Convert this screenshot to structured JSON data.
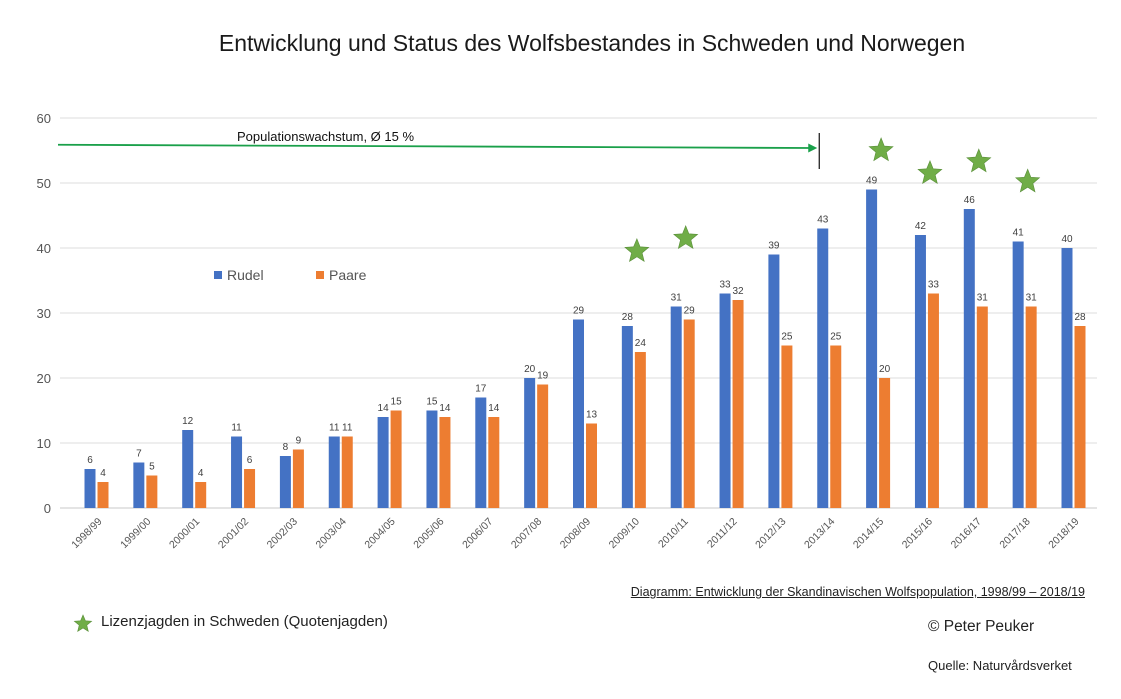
{
  "chart_data": {
    "type": "bar",
    "title": "Entwicklung und Status des Wolfsbestandes in Schweden und Norwegen",
    "caption": "Diagramm: Entwicklung der Skandinavischen Wolfspopulation, 1998/99 – 2018/19",
    "categories": [
      "1998/99",
      "1999/00",
      "2000/01",
      "2001/02",
      "2002/03",
      "2003/04",
      "2004/05",
      "2005/06",
      "2006/07",
      "2007/08",
      "2008/09",
      "2009/10",
      "2010/11",
      "2011/12",
      "2012/13",
      "2013/14",
      "2014/15",
      "2015/16",
      "2016/17",
      "2017/18",
      "2018/19"
    ],
    "series": [
      {
        "name": "Rudel",
        "color": "#4472c4",
        "values": [
          6,
          7,
          12,
          11,
          8,
          11,
          14,
          15,
          17,
          20,
          29,
          28,
          31,
          33,
          39,
          43,
          49,
          42,
          46,
          41,
          40
        ]
      },
      {
        "name": "Paare",
        "color": "#ed7d31",
        "values": [
          4,
          5,
          4,
          6,
          9,
          11,
          15,
          14,
          14,
          19,
          13,
          24,
          29,
          32,
          25,
          25,
          20,
          33,
          31,
          31,
          28
        ]
      }
    ],
    "ylim": [
      0,
      60
    ],
    "yticks": [
      0,
      10,
      20,
      30,
      40,
      50,
      60
    ],
    "grid": true,
    "legend_position": "upper-left",
    "annotations": {
      "growth_arrow": {
        "label": "Populationswachstum, Ø 15 %",
        "color": "#1aa04a",
        "from_value": 55.5,
        "to_value": 55,
        "end_category": "2013/14"
      },
      "stars": {
        "color": "#70ad47",
        "label": "Lizenzjagden in Schweden (Quotenjagden)",
        "markers": [
          {
            "category": "2009/10",
            "y": 39.5
          },
          {
            "category": "2010/11",
            "y": 41.5
          },
          {
            "category": "2014/15",
            "y": 55
          },
          {
            "category": "2015/16",
            "y": 51.5
          },
          {
            "category": "2016/17",
            "y": 53.3
          },
          {
            "category": "2017/18",
            "y": 50.2
          }
        ]
      }
    }
  },
  "footer": {
    "copyright": "© Peter Peuker",
    "source": "Quelle: Naturvårdsverket"
  }
}
